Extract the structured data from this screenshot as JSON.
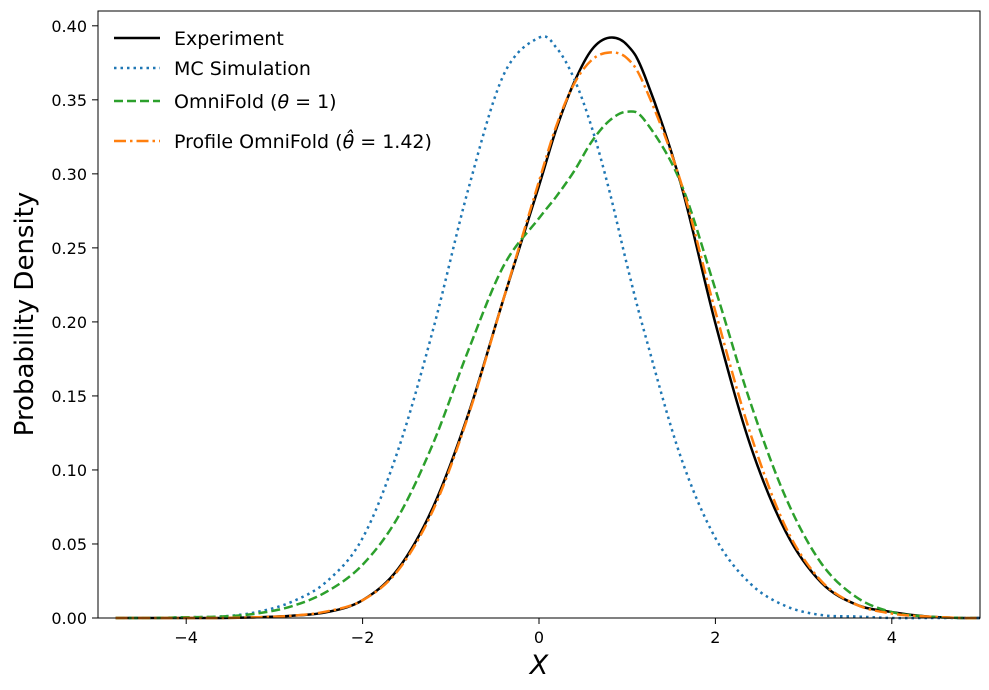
{
  "chart_data": {
    "type": "line",
    "title": "",
    "xlabel": "X",
    "ylabel": "Probability Density",
    "xlim": [
      -5,
      5
    ],
    "ylim": [
      0,
      0.41
    ],
    "xticks": [
      -4,
      -2,
      0,
      2,
      4
    ],
    "xtick_labels": [
      "−4",
      "−2",
      "0",
      "2",
      "4"
    ],
    "yticks": [
      0.0,
      0.05,
      0.1,
      0.15,
      0.2,
      0.25,
      0.3,
      0.35,
      0.4
    ],
    "ytick_labels": [
      "0.00",
      "0.05",
      "0.10",
      "0.15",
      "0.20",
      "0.25",
      "0.30",
      "0.35",
      "0.40"
    ],
    "grid": false,
    "legend_position": "top-left",
    "x": [
      -4.8,
      -4.4,
      -4.0,
      -3.6,
      -3.2,
      -2.8,
      -2.4,
      -2.0,
      -1.6,
      -1.2,
      -0.8,
      -0.4,
      0.0,
      0.2,
      0.4,
      0.6,
      0.8,
      1.0,
      1.2,
      1.6,
      2.0,
      2.4,
      2.8,
      3.2,
      3.6,
      4.0,
      4.4,
      4.8,
      5.0
    ],
    "series": [
      {
        "name": "Experiment",
        "color": "#000000",
        "style": "solid",
        "values": [
          0.0,
          0.0,
          0.0,
          0.0,
          0.0005,
          0.0015,
          0.004,
          0.012,
          0.033,
          0.075,
          0.138,
          0.216,
          0.292,
          0.331,
          0.362,
          0.384,
          0.392,
          0.387,
          0.366,
          0.295,
          0.199,
          0.116,
          0.058,
          0.024,
          0.009,
          0.004,
          0.001,
          0.0,
          0.0
        ]
      },
      {
        "name": "MC Simulation",
        "color": "#1f77b4",
        "style": "dotted",
        "values": [
          0.0,
          0.0,
          0.0005,
          0.001,
          0.004,
          0.011,
          0.025,
          0.054,
          0.113,
          0.195,
          0.29,
          0.367,
          0.392,
          0.385,
          0.364,
          0.331,
          0.288,
          0.238,
          0.192,
          0.11,
          0.054,
          0.023,
          0.008,
          0.002,
          0.001,
          0.0,
          0.0,
          0.0,
          0.0
        ]
      },
      {
        "name": "OmniFold (θ = 1)",
        "color": "#2ca02c",
        "style": "dashed",
        "values": [
          0.0,
          0.0,
          0.0005,
          0.001,
          0.003,
          0.008,
          0.018,
          0.036,
          0.068,
          0.118,
          0.181,
          0.238,
          0.27,
          0.285,
          0.302,
          0.322,
          0.336,
          0.342,
          0.336,
          0.295,
          0.222,
          0.145,
          0.081,
          0.037,
          0.014,
          0.004,
          0.001,
          0.0,
          0.0
        ]
      },
      {
        "name": "Profile OmniFold (θ̂ = 1.42)",
        "color": "#ff7f0e",
        "style": "dashdot",
        "values": [
          0.0,
          0.0,
          0.0,
          0.0,
          0.0005,
          0.0015,
          0.0045,
          0.012,
          0.032,
          0.073,
          0.137,
          0.216,
          0.295,
          0.333,
          0.361,
          0.377,
          0.382,
          0.378,
          0.359,
          0.296,
          0.207,
          0.124,
          0.061,
          0.025,
          0.009,
          0.003,
          0.001,
          0.0,
          0.0
        ]
      }
    ],
    "legend": {
      "entries": [
        {
          "label": "Experiment"
        },
        {
          "label": "MC Simulation"
        },
        {
          "prefix": "OmniFold (",
          "theta": "θ",
          "rest": " = 1)"
        },
        {
          "prefix": "Profile OmniFold (",
          "theta": "θ̂",
          "rest": " = 1.42)"
        }
      ]
    }
  }
}
